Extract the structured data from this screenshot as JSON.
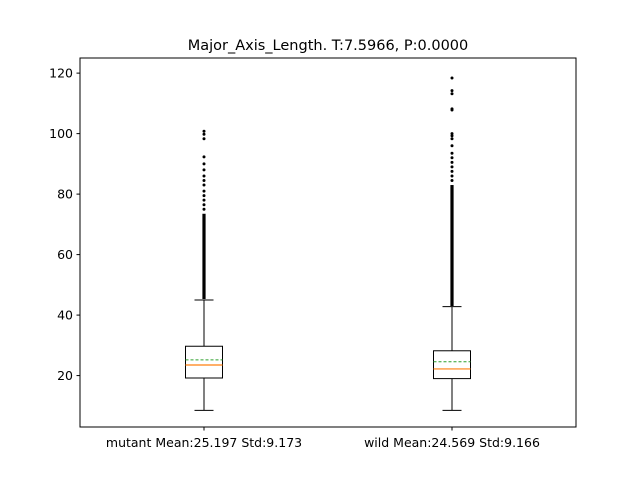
{
  "chart_data": {
    "type": "box",
    "title": "Major_Axis_Length. T:7.5966, P:0.0000",
    "xlabel": "",
    "ylabel": "",
    "ylim": [
      3,
      125
    ],
    "yticks": [
      20,
      40,
      60,
      80,
      100,
      120
    ],
    "grid": false,
    "legend": "none",
    "colors": {
      "median": "#ff7f0e",
      "mean": "#2ca02c",
      "box": "#000000"
    },
    "categories": [
      "mutant Mean:25.197 Std:9.173",
      "wild Mean:24.569 Std:9.166"
    ],
    "boxes": [
      {
        "whisker_low": 8.5,
        "q1": 19.2,
        "median": 23.5,
        "mean": 25.197,
        "q3": 29.7,
        "whisker_high": 45.0,
        "flier_range": [
          45.3,
          73.5
        ],
        "fliers": [
          75,
          76.5,
          78,
          79.5,
          81,
          83,
          84.5,
          86,
          88,
          90,
          92.3,
          98.3,
          99.8,
          100.8
        ]
      },
      {
        "whisker_low": 8.5,
        "q1": 19.0,
        "median": 22.2,
        "mean": 24.569,
        "q3": 28.2,
        "whisker_high": 42.8,
        "flier_range": [
          43.0,
          83.0
        ],
        "fliers": [
          84.5,
          86,
          87.5,
          89,
          90.5,
          92,
          93.5,
          96,
          98.3,
          99.3,
          100,
          107.8,
          108.2,
          113.2,
          114.2,
          118.4
        ]
      }
    ]
  }
}
